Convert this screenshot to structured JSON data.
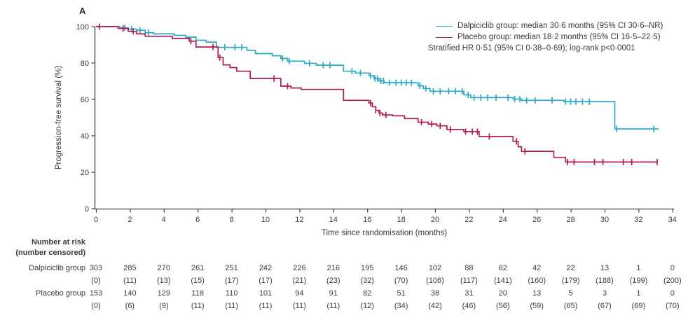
{
  "panel_label": "A",
  "colors": {
    "dalpiciclib": "#29A9C8",
    "placebo": "#AE1A52",
    "axis": "#404040",
    "text": "#3b3b3b"
  },
  "legend": {
    "entries": [
      {
        "name": "dalpiciclib",
        "label": "Dalpiciclib group: median 30·6 months (95% CI 30·6–NR)",
        "color": "#29A9C8"
      },
      {
        "name": "placebo",
        "label": "Placebo group: median 18·2 months (95% CI 16·5–22·5)",
        "color": "#AE1A52"
      }
    ],
    "note": "Stratified HR 0·51 (95% CI 0·38–0·69); log-rank p<0·0001"
  },
  "chart_data": {
    "type": "line",
    "subtype": "kaplan-meier-step",
    "title": "",
    "xlabel": "Time since randomisation (months)",
    "ylabel": "Progression-free survival (%)",
    "xlim": [
      0,
      34
    ],
    "ylim": [
      0,
      100
    ],
    "xticks": [
      0,
      2,
      4,
      6,
      8,
      10,
      12,
      14,
      16,
      18,
      20,
      22,
      24,
      26,
      28,
      30,
      32,
      34
    ],
    "yticks": [
      0,
      20,
      40,
      60,
      80,
      100
    ],
    "grid": false,
    "legend_position": "top-right",
    "series": [
      {
        "name": "Dalpiciclib group",
        "color": "#29A9C8",
        "median_months": "30·6",
        "ci95": "30·6–NR",
        "steps": [
          [
            0,
            100
          ],
          [
            1.4,
            99.3
          ],
          [
            1.9,
            98.6
          ],
          [
            2.4,
            98
          ],
          [
            2.9,
            96.7
          ],
          [
            3.4,
            96
          ],
          [
            4.6,
            95.2
          ],
          [
            5.3,
            94.2
          ],
          [
            5.9,
            92.5
          ],
          [
            6.5,
            91.5
          ],
          [
            7.1,
            88.6
          ],
          [
            8.9,
            87
          ],
          [
            9.4,
            85.2
          ],
          [
            10.4,
            84
          ],
          [
            10.9,
            82.5
          ],
          [
            11.3,
            81
          ],
          [
            12.3,
            79.8
          ],
          [
            13,
            78.8
          ],
          [
            14.6,
            75.5
          ],
          [
            15.3,
            74.5
          ],
          [
            16.1,
            73
          ],
          [
            16.4,
            71.5
          ],
          [
            16.7,
            70.2
          ],
          [
            17,
            69.2
          ],
          [
            19,
            67.5
          ],
          [
            19.3,
            66
          ],
          [
            19.7,
            64.5
          ],
          [
            21.7,
            62.5
          ],
          [
            22.1,
            61
          ],
          [
            24.6,
            60.2
          ],
          [
            25.1,
            59.5
          ],
          [
            27.6,
            58.8
          ],
          [
            30.6,
            43.8
          ],
          [
            33.2,
            43.8
          ]
        ],
        "censor_times": [
          1.7,
          2.1,
          2.6,
          3.1,
          7.6,
          8.2,
          8.6,
          11,
          11.4,
          12.6,
          13.4,
          13.8,
          15.1,
          15.6,
          16.2,
          16.45,
          16.6,
          16.8,
          16.95,
          17.3,
          17.7,
          18,
          18.3,
          18.6,
          19.1,
          19.45,
          19.9,
          20.3,
          20.8,
          21.2,
          21.6,
          21.95,
          22.3,
          22.7,
          23.1,
          23.6,
          24.3,
          24.7,
          25,
          25.4,
          25.9,
          26.9,
          27.7,
          28,
          28.3,
          28.7,
          29.1,
          30.7,
          32.9
        ]
      },
      {
        "name": "Placebo group",
        "color": "#AE1A52",
        "median_months": "18·2",
        "ci95": "16·5–22·5",
        "steps": [
          [
            0,
            100
          ],
          [
            1.3,
            99
          ],
          [
            1.9,
            97.4
          ],
          [
            2.4,
            96
          ],
          [
            2.9,
            94.7
          ],
          [
            4.5,
            93.5
          ],
          [
            5.5,
            92
          ],
          [
            5.9,
            88.8
          ],
          [
            7.2,
            83
          ],
          [
            7.5,
            79
          ],
          [
            7.9,
            77.5
          ],
          [
            8.3,
            75.5
          ],
          [
            9.1,
            71.5
          ],
          [
            10.9,
            67.3
          ],
          [
            11.5,
            66.3
          ],
          [
            12.1,
            65.5
          ],
          [
            14.6,
            59.5
          ],
          [
            16.1,
            58
          ],
          [
            16.3,
            56
          ],
          [
            16.5,
            54
          ],
          [
            16.7,
            52.5
          ],
          [
            16.9,
            51.5
          ],
          [
            17.5,
            51
          ],
          [
            18.2,
            49.5
          ],
          [
            19,
            47.5
          ],
          [
            19.6,
            46.5
          ],
          [
            20.1,
            45.5
          ],
          [
            20.7,
            43.5
          ],
          [
            21.7,
            42.3
          ],
          [
            22.6,
            39.6
          ],
          [
            24.6,
            37
          ],
          [
            24.9,
            34
          ],
          [
            25.1,
            31.5
          ],
          [
            27,
            28.2
          ],
          [
            27.7,
            25.6
          ],
          [
            33.1,
            25.6
          ]
        ],
        "censor_times": [
          0.2,
          1.6,
          2.2,
          5.6,
          6.9,
          7.3,
          10.5,
          11.3,
          16.2,
          16.5,
          16.75,
          17.1,
          19.2,
          19.8,
          20.3,
          20.9,
          21.8,
          22.2,
          22.5,
          23.2,
          24.8,
          25.3,
          27.8,
          28.2,
          29.4,
          29.9,
          31.1,
          31.6,
          33.1
        ]
      }
    ]
  },
  "risk_table": {
    "header_line1": "Number at risk",
    "header_line2": "(number censored)",
    "timepoints": [
      0,
      2,
      4,
      6,
      8,
      10,
      12,
      14,
      16,
      18,
      20,
      22,
      24,
      26,
      28,
      30,
      32,
      34
    ],
    "rows": [
      {
        "label": "Dalpiciclib group",
        "at_risk": [
          303,
          285,
          270,
          261,
          251,
          242,
          226,
          216,
          195,
          146,
          102,
          88,
          62,
          42,
          22,
          13,
          1,
          0
        ],
        "censored": [
          0,
          11,
          13,
          15,
          17,
          17,
          21,
          23,
          32,
          70,
          106,
          117,
          141,
          160,
          179,
          188,
          199,
          200
        ]
      },
      {
        "label": "Placebo group",
        "at_risk": [
          153,
          140,
          129,
          118,
          110,
          101,
          94,
          91,
          82,
          51,
          38,
          31,
          20,
          13,
          5,
          3,
          1,
          0
        ],
        "censored": [
          0,
          6,
          9,
          11,
          11,
          11,
          11,
          11,
          12,
          34,
          42,
          46,
          56,
          59,
          65,
          67,
          69,
          70
        ]
      }
    ]
  }
}
